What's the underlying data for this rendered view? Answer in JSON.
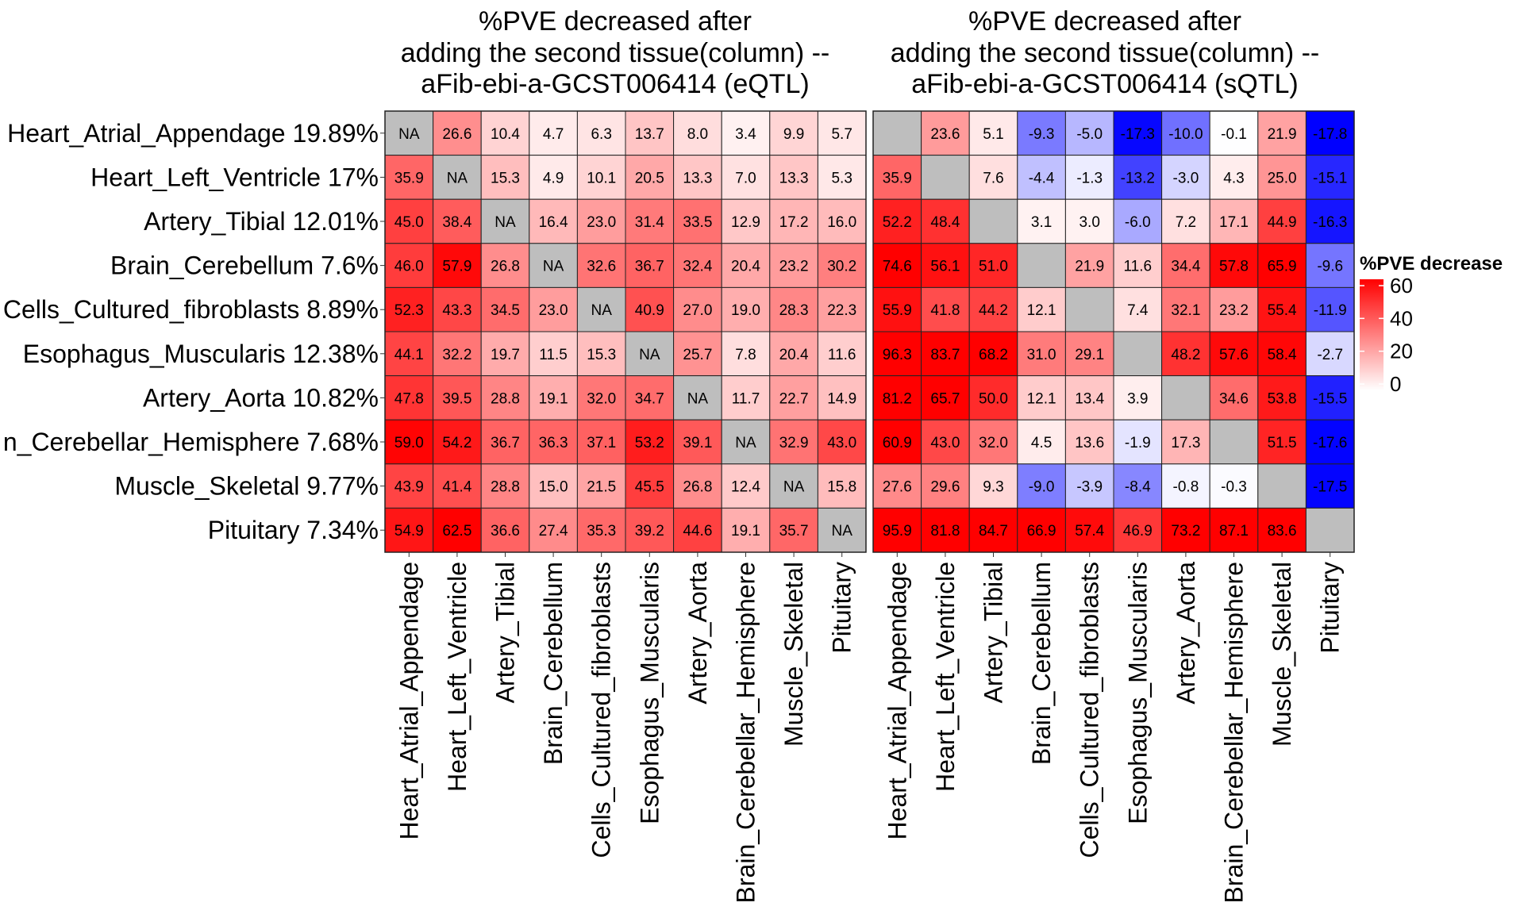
{
  "chart_data": [
    {
      "type": "heatmap",
      "title": [
        "%PVE decreased after",
        "adding the second tissue(column) --",
        "aFib-ebi-a-GCST006414 (eQTL)"
      ],
      "rows": [
        "Heart_Atrial_Appendage 19.89%",
        "Heart_Left_Ventricle 17%",
        "Artery_Tibial 12.01%",
        "Brain_Cerebellum 7.6%",
        "Cells_Cultured_fibroblasts 8.89%",
        "Esophagus_Muscularis 12.38%",
        "Artery_Aorta 10.82%",
        "n_Cerebellar_Hemisphere 7.68%",
        "Muscle_Skeletal 9.77%",
        "Pituitary 7.34%"
      ],
      "columns": [
        "Heart_Atrial_Appendage",
        "Heart_Left_Ventricle",
        "Artery_Tibial",
        "Brain_Cerebellum",
        "Cells_Cultured_fibroblasts",
        "Esophagus_Muscularis",
        "Artery_Aorta",
        "Brain_Cerebellar_Hemisphere",
        "Muscle_Skeletal",
        "Pituitary"
      ],
      "na_label": "NA",
      "values": [
        [
          null,
          26.6,
          10.4,
          4.7,
          6.3,
          13.7,
          8.0,
          3.4,
          9.9,
          5.7
        ],
        [
          35.9,
          null,
          15.3,
          4.9,
          10.1,
          20.5,
          13.3,
          7.0,
          13.3,
          5.3
        ],
        [
          45.0,
          38.4,
          null,
          16.4,
          23.0,
          31.4,
          33.5,
          12.9,
          17.2,
          16.0
        ],
        [
          46.0,
          57.9,
          26.8,
          null,
          32.6,
          36.7,
          32.4,
          20.4,
          23.2,
          30.2
        ],
        [
          52.3,
          43.3,
          34.5,
          23.0,
          null,
          40.9,
          27.0,
          19.0,
          28.3,
          22.3
        ],
        [
          44.1,
          32.2,
          19.7,
          11.5,
          15.3,
          null,
          25.7,
          7.8,
          20.4,
          11.6
        ],
        [
          47.8,
          39.5,
          28.8,
          19.1,
          32.0,
          34.7,
          null,
          11.7,
          22.7,
          14.9
        ],
        [
          59.0,
          54.2,
          36.7,
          36.3,
          37.1,
          53.2,
          39.1,
          null,
          32.9,
          43.0
        ],
        [
          43.9,
          41.4,
          28.8,
          15.0,
          21.5,
          45.5,
          26.8,
          12.4,
          null,
          15.8
        ],
        [
          54.9,
          62.5,
          36.6,
          27.4,
          35.3,
          39.2,
          44.6,
          19.1,
          35.7,
          null
        ]
      ]
    },
    {
      "type": "heatmap",
      "title": [
        "%PVE decreased after",
        "adding the second tissue(column) --",
        "aFib-ebi-a-GCST006414 (sQTL)"
      ],
      "columns": [
        "Heart_Atrial_Appendage",
        "Heart_Left_Ventricle",
        "Artery_Tibial",
        "Brain_Cerebellum",
        "Cells_Cultured_fibroblasts",
        "Esophagus_Muscularis",
        "Artery_Aorta",
        "Brain_Cerebellar_Hemisphere",
        "Muscle_Skeletal",
        "Pituitary"
      ],
      "values": [
        [
          null,
          23.6,
          5.1,
          -9.3,
          -5.0,
          -17.3,
          -10.0,
          -0.1,
          21.9,
          -17.8
        ],
        [
          35.9,
          null,
          7.6,
          -4.4,
          -1.3,
          -13.2,
          -3.0,
          4.3,
          25.0,
          -15.1
        ],
        [
          52.2,
          48.4,
          null,
          3.1,
          3.0,
          -6.0,
          7.2,
          17.1,
          44.9,
          -16.3
        ],
        [
          74.6,
          56.1,
          51.0,
          null,
          21.9,
          11.6,
          34.4,
          57.8,
          65.9,
          -9.6
        ],
        [
          55.9,
          41.8,
          44.2,
          12.1,
          null,
          7.4,
          32.1,
          23.2,
          55.4,
          -11.9
        ],
        [
          96.3,
          83.7,
          68.2,
          31.0,
          29.1,
          null,
          48.2,
          57.6,
          58.4,
          -2.7
        ],
        [
          81.2,
          65.7,
          50.0,
          12.1,
          13.4,
          3.9,
          null,
          34.6,
          53.8,
          -15.5
        ],
        [
          60.9,
          43.0,
          32.0,
          4.5,
          13.6,
          -1.9,
          17.3,
          null,
          51.5,
          -17.6
        ],
        [
          27.6,
          29.6,
          9.3,
          -9.0,
          -3.9,
          -8.4,
          -0.8,
          -0.3,
          null,
          -17.5
        ],
        [
          95.9,
          81.8,
          84.7,
          66.9,
          57.4,
          46.9,
          73.2,
          87.1,
          83.6,
          null
        ]
      ]
    }
  ],
  "legend": {
    "title": "%PVE decrease",
    "ticks": [
      60,
      40,
      20,
      0
    ],
    "range": [
      0,
      60
    ],
    "colors": {
      "high": "#ff0000",
      "zero": "#ffffff",
      "negative": "#0000ff",
      "na": "#bebebe"
    }
  }
}
